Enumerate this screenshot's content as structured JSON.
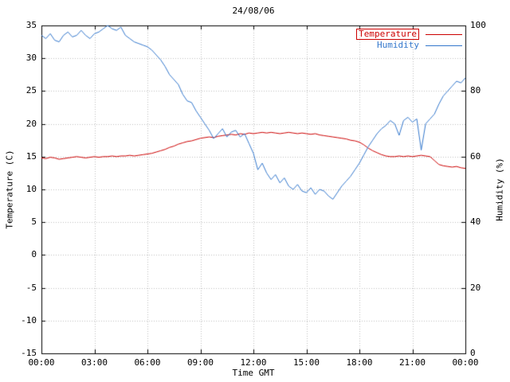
{
  "chart_data": {
    "type": "line",
    "title": "24/08/06",
    "xlabel": "Time GMT",
    "y_left_label": "Temperature (C)",
    "y_right_label": "Humidity (%)",
    "grid": true,
    "legend_position": "top-right",
    "x_ticks": {
      "hours": [
        0,
        3,
        6,
        9,
        12,
        15,
        18,
        21,
        24
      ],
      "labels": [
        "00:00",
        "03:00",
        "06:00",
        "09:00",
        "12:00",
        "15:00",
        "18:00",
        "21:00",
        "00:00"
      ]
    },
    "y_left": {
      "min": -15,
      "max": 35,
      "ticks": [
        35,
        30,
        25,
        20,
        15,
        10,
        5,
        0,
        -5,
        -10,
        -15
      ]
    },
    "y_right": {
      "min": 0,
      "max": 100,
      "ticks": [
        100,
        80,
        60,
        40,
        20,
        0
      ]
    },
    "x_start_hour": 0,
    "x_step_hours": 0.25,
    "grid_color": "#bebebe",
    "series": [
      {
        "name": "Temperature",
        "axis": "left",
        "color": "#cc0000",
        "boxed_legend": true,
        "values": [
          14.8,
          14.7,
          14.9,
          14.8,
          14.6,
          14.7,
          14.8,
          14.9,
          15.0,
          14.9,
          14.8,
          14.9,
          15.0,
          14.9,
          15.0,
          15.0,
          15.1,
          15.0,
          15.1,
          15.1,
          15.2,
          15.1,
          15.2,
          15.3,
          15.4,
          15.5,
          15.7,
          15.9,
          16.1,
          16.4,
          16.6,
          16.9,
          17.1,
          17.3,
          17.4,
          17.6,
          17.8,
          17.9,
          18.0,
          17.9,
          18.1,
          18.2,
          18.3,
          18.4,
          18.3,
          18.5,
          18.4,
          18.6,
          18.5,
          18.6,
          18.7,
          18.6,
          18.7,
          18.6,
          18.5,
          18.6,
          18.7,
          18.6,
          18.5,
          18.6,
          18.5,
          18.4,
          18.5,
          18.3,
          18.2,
          18.1,
          18.0,
          17.9,
          17.8,
          17.7,
          17.5,
          17.4,
          17.2,
          16.8,
          16.3,
          15.9,
          15.6,
          15.3,
          15.1,
          15.0,
          15.0,
          15.1,
          15.0,
          15.1,
          15.0,
          15.1,
          15.2,
          15.1,
          15.0,
          14.4,
          13.8,
          13.6,
          13.5,
          13.4,
          13.5,
          13.3,
          13.2
        ]
      },
      {
        "name": "Humidity",
        "axis": "right",
        "color": "#3377cc",
        "boxed_legend": false,
        "values": [
          97,
          96,
          97.5,
          95.5,
          95,
          97,
          98,
          96.5,
          97,
          98.5,
          97,
          96,
          97.5,
          98,
          99,
          100,
          99,
          98.5,
          99.5,
          97,
          96,
          95,
          94.5,
          94,
          93.5,
          92.5,
          91,
          89.5,
          87.5,
          85,
          83.5,
          82,
          79,
          77,
          76.5,
          74,
          72,
          70,
          68,
          65.5,
          67,
          68.5,
          66,
          67.5,
          68,
          66,
          67,
          64,
          61,
          56,
          58,
          55,
          53,
          54.5,
          52,
          53.5,
          51,
          50,
          51.5,
          49.5,
          49,
          50.5,
          48.5,
          50,
          49.5,
          48,
          47,
          49,
          51,
          52.5,
          54,
          56,
          58,
          60.5,
          63,
          65,
          67,
          68.5,
          69.5,
          71,
          70,
          66.5,
          71,
          72,
          70.5,
          71.5,
          62,
          70,
          71.5,
          73,
          76,
          78.5,
          80,
          81.5,
          83,
          82.5,
          84
        ]
      }
    ]
  }
}
